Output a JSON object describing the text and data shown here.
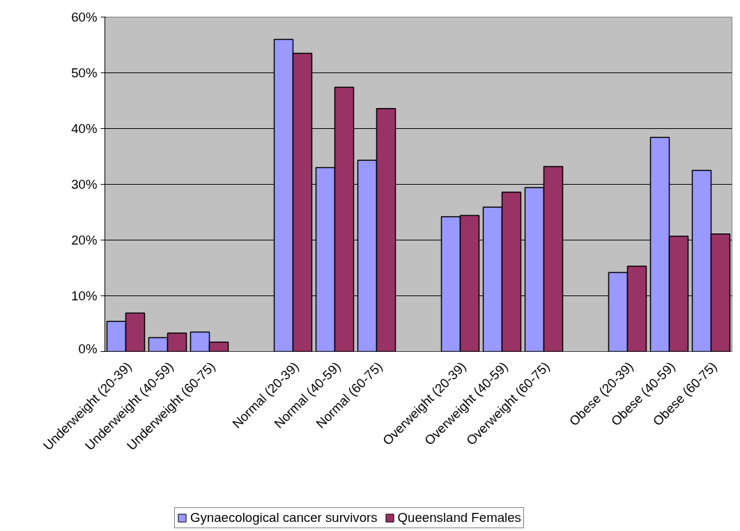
{
  "chart_data": {
    "type": "bar",
    "categories": [
      "Underweight (20-39)",
      "Underweight (40-59)",
      "Underweight (60-75)",
      null,
      "Normal (20-39)",
      "Normal (40-59)",
      "Normal (60-75)",
      null,
      "Overweight (20-39)",
      "Overweight (40-59)",
      "Overweight (60-75)",
      null,
      "Obese (20-39)",
      "Obese (40-59)",
      "Obese (60-75)"
    ],
    "series": [
      {
        "name": "Gynaecological cancer survivors",
        "color": "#9999ff",
        "values": [
          5.4,
          2.5,
          3.5,
          null,
          56,
          33.0,
          34.3,
          null,
          24.2,
          25.9,
          29.4,
          null,
          14.2,
          38.4,
          32.5
        ]
      },
      {
        "name": "Queensland Females",
        "color": "#993366",
        "values": [
          6.9,
          3.3,
          1.7,
          null,
          53.5,
          47.4,
          43.6,
          null,
          24.4,
          28.6,
          33.2,
          null,
          15.3,
          20.7,
          21.1
        ]
      }
    ],
    "ylim": [
      0,
      60
    ],
    "yticks": [
      {
        "value": 0,
        "label": "0%"
      },
      {
        "value": 10,
        "label": "10%"
      },
      {
        "value": 20,
        "label": "20%"
      },
      {
        "value": 30,
        "label": "30%"
      },
      {
        "value": 40,
        "label": "40%"
      },
      {
        "value": 50,
        "label": "50%"
      },
      {
        "value": 60,
        "label": "60%"
      }
    ],
    "grid": "y",
    "legend": "bottom"
  }
}
